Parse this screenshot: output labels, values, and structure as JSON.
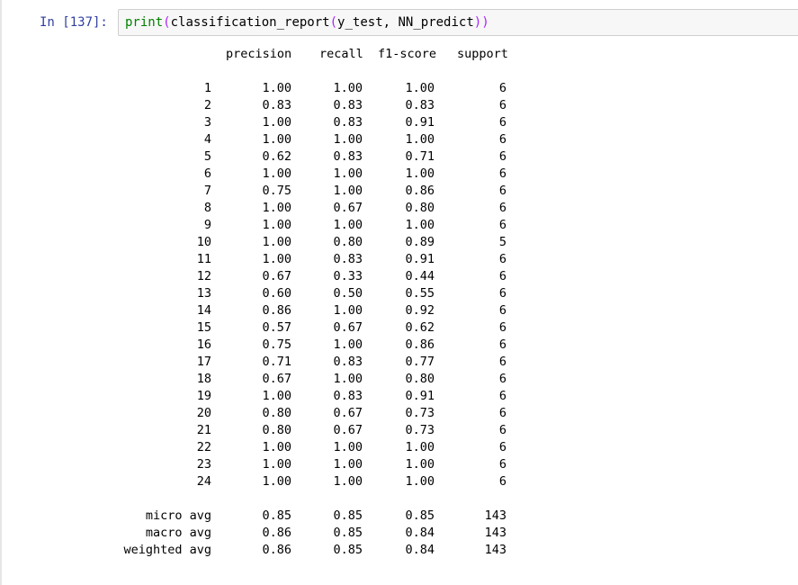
{
  "cell": {
    "prompt": "In  [137]:",
    "code": {
      "func": "print",
      "arg": "classification_report",
      "args": "y_test, NN_predict"
    }
  },
  "report": {
    "headers": [
      "precision",
      "recall",
      "f1-score",
      "support"
    ],
    "rows": [
      {
        "label": "1",
        "precision": "1.00",
        "recall": "1.00",
        "f1": "1.00",
        "support": "6"
      },
      {
        "label": "2",
        "precision": "0.83",
        "recall": "0.83",
        "f1": "0.83",
        "support": "6"
      },
      {
        "label": "3",
        "precision": "1.00",
        "recall": "0.83",
        "f1": "0.91",
        "support": "6"
      },
      {
        "label": "4",
        "precision": "1.00",
        "recall": "1.00",
        "f1": "1.00",
        "support": "6"
      },
      {
        "label": "5",
        "precision": "0.62",
        "recall": "0.83",
        "f1": "0.71",
        "support": "6"
      },
      {
        "label": "6",
        "precision": "1.00",
        "recall": "1.00",
        "f1": "1.00",
        "support": "6"
      },
      {
        "label": "7",
        "precision": "0.75",
        "recall": "1.00",
        "f1": "0.86",
        "support": "6"
      },
      {
        "label": "8",
        "precision": "1.00",
        "recall": "0.67",
        "f1": "0.80",
        "support": "6"
      },
      {
        "label": "9",
        "precision": "1.00",
        "recall": "1.00",
        "f1": "1.00",
        "support": "6"
      },
      {
        "label": "10",
        "precision": "1.00",
        "recall": "0.80",
        "f1": "0.89",
        "support": "5"
      },
      {
        "label": "11",
        "precision": "1.00",
        "recall": "0.83",
        "f1": "0.91",
        "support": "6"
      },
      {
        "label": "12",
        "precision": "0.67",
        "recall": "0.33",
        "f1": "0.44",
        "support": "6"
      },
      {
        "label": "13",
        "precision": "0.60",
        "recall": "0.50",
        "f1": "0.55",
        "support": "6"
      },
      {
        "label": "14",
        "precision": "0.86",
        "recall": "1.00",
        "f1": "0.92",
        "support": "6"
      },
      {
        "label": "15",
        "precision": "0.57",
        "recall": "0.67",
        "f1": "0.62",
        "support": "6"
      },
      {
        "label": "16",
        "precision": "0.75",
        "recall": "1.00",
        "f1": "0.86",
        "support": "6"
      },
      {
        "label": "17",
        "precision": "0.71",
        "recall": "0.83",
        "f1": "0.77",
        "support": "6"
      },
      {
        "label": "18",
        "precision": "0.67",
        "recall": "1.00",
        "f1": "0.80",
        "support": "6"
      },
      {
        "label": "19",
        "precision": "1.00",
        "recall": "0.83",
        "f1": "0.91",
        "support": "6"
      },
      {
        "label": "20",
        "precision": "0.80",
        "recall": "0.67",
        "f1": "0.73",
        "support": "6"
      },
      {
        "label": "21",
        "precision": "0.80",
        "recall": "0.67",
        "f1": "0.73",
        "support": "6"
      },
      {
        "label": "22",
        "precision": "1.00",
        "recall": "1.00",
        "f1": "1.00",
        "support": "6"
      },
      {
        "label": "23",
        "precision": "1.00",
        "recall": "1.00",
        "f1": "1.00",
        "support": "6"
      },
      {
        "label": "24",
        "precision": "1.00",
        "recall": "1.00",
        "f1": "1.00",
        "support": "6"
      }
    ],
    "averages": [
      {
        "label": "micro avg",
        "precision": "0.85",
        "recall": "0.85",
        "f1": "0.85",
        "support": "143"
      },
      {
        "label": "macro avg",
        "precision": "0.86",
        "recall": "0.85",
        "f1": "0.84",
        "support": "143"
      },
      {
        "label": "weighted avg",
        "precision": "0.86",
        "recall": "0.85",
        "f1": "0.84",
        "support": "143"
      }
    ]
  }
}
